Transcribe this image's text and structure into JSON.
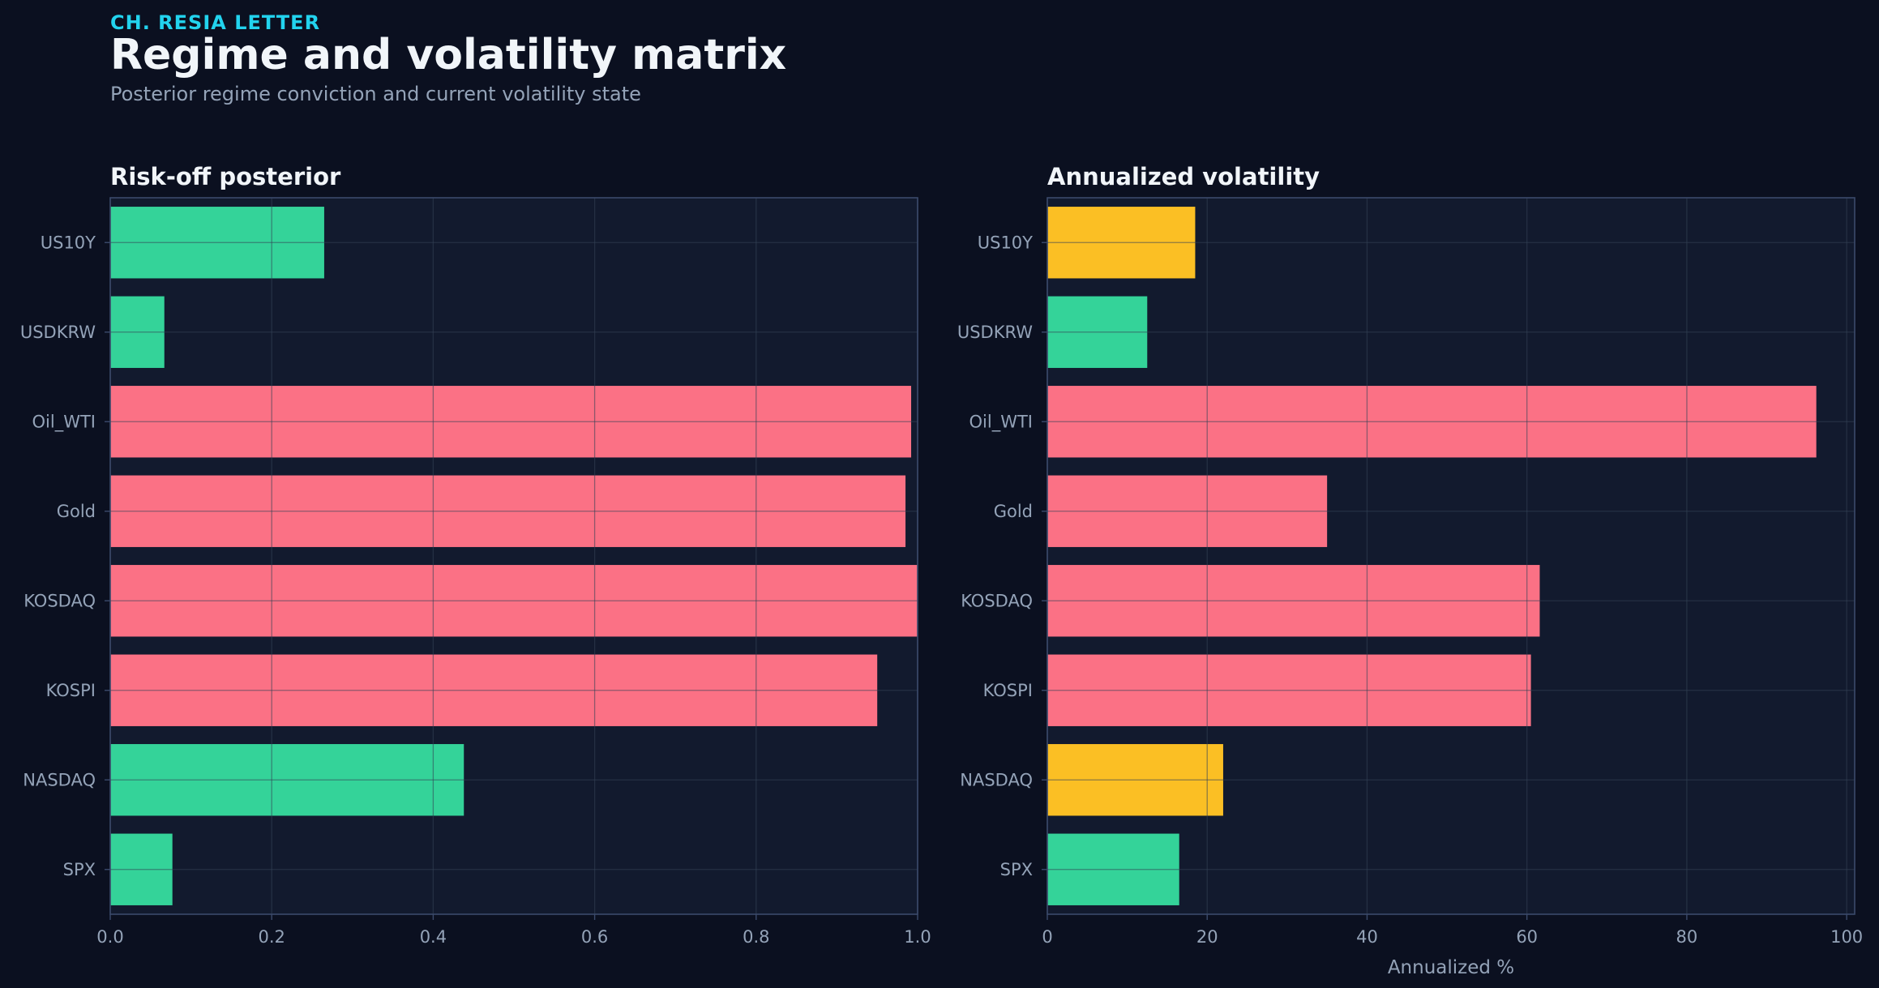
{
  "header": {
    "eyebrow": "CH. RESIA LETTER",
    "title": "Regime and volatility matrix",
    "subtitle": "Posterior regime conviction and current volatility state"
  },
  "colors": {
    "background": "#0b1020",
    "panel": "#121a2e",
    "grid": "#243049",
    "axis": "#3b4a6b",
    "tick_text": "#94a3b8",
    "title_text": "#f1f5f9",
    "accent": "#22d3ee",
    "green": "#34d399",
    "red": "#fb7185",
    "yellow": "#fbbf24"
  },
  "chart_data": [
    {
      "type": "bar",
      "orientation": "horizontal",
      "title": "Risk-off posterior",
      "xlabel": "",
      "ylabel": "",
      "categories": [
        "US10Y",
        "USDKRW",
        "Oil_WTI",
        "Gold",
        "KOSDAQ",
        "KOSPI",
        "NASDAQ",
        "SPX"
      ],
      "values": [
        0.265,
        0.067,
        0.992,
        0.985,
        1.0,
        0.95,
        0.438,
        0.077
      ],
      "bar_colors": [
        "green",
        "green",
        "red",
        "red",
        "red",
        "red",
        "green",
        "green"
      ],
      "xlim": [
        0,
        1.0
      ],
      "xticks": [
        "0.0",
        "0.2",
        "0.4",
        "0.6",
        "0.8",
        "1.0"
      ],
      "xtick_values": [
        0,
        0.2,
        0.4,
        0.6,
        0.8,
        1.0
      ],
      "grid": true
    },
    {
      "type": "bar",
      "orientation": "horizontal",
      "title": "Annualized volatility",
      "xlabel": "Annualized %",
      "ylabel": "",
      "categories": [
        "US10Y",
        "USDKRW",
        "Oil_WTI",
        "Gold",
        "KOSDAQ",
        "KOSPI",
        "NASDAQ",
        "SPX"
      ],
      "values": [
        18.5,
        12.5,
        96.2,
        35.0,
        61.6,
        60.5,
        22.0,
        16.5
      ],
      "bar_colors": [
        "yellow",
        "green",
        "red",
        "red",
        "red",
        "red",
        "yellow",
        "green"
      ],
      "xlim": [
        0,
        101
      ],
      "xticks": [
        "0",
        "20",
        "40",
        "60",
        "80",
        "100"
      ],
      "xtick_values": [
        0,
        20,
        40,
        60,
        80,
        100
      ],
      "grid": true
    }
  ]
}
